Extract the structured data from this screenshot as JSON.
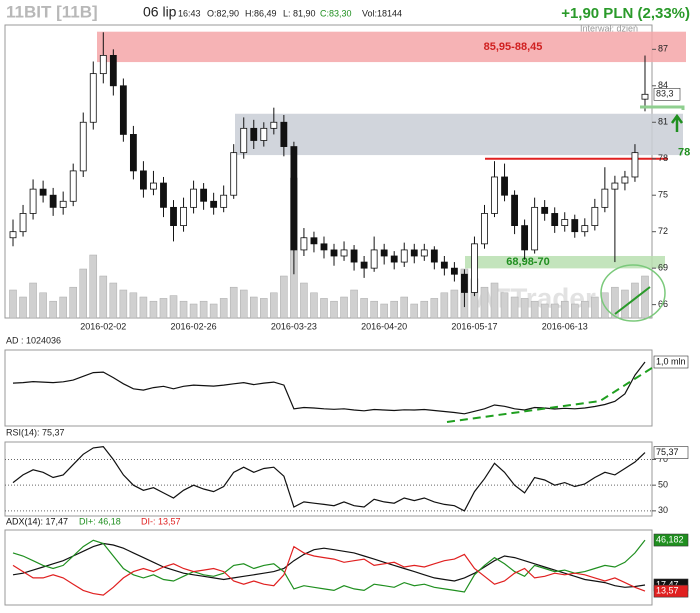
{
  "header": {
    "symbol": "11BIT [11B]",
    "date": "06 lip",
    "time": "16:43",
    "open": "O:82,90",
    "high": "H:86,49",
    "low": "L: 81,90",
    "close": "C:83,30",
    "volume": "Vol:18144",
    "change": "+1,90 PLN (2,33%)",
    "interval": "Interwał: dzień",
    "watermark": "ATTrader"
  },
  "chart_data": [
    {
      "type": "candlestick",
      "categories": [
        null,
        null,
        null,
        null,
        null,
        null,
        null,
        null,
        null,
        "2016-02-02",
        null,
        null,
        null,
        null,
        null,
        null,
        null,
        null,
        "2016-02-26",
        null,
        null,
        null,
        null,
        null,
        null,
        null,
        null,
        null,
        "2016-03-23",
        null,
        null,
        null,
        null,
        null,
        null,
        null,
        null,
        "2016-04-20",
        null,
        null,
        null,
        null,
        null,
        null,
        null,
        null,
        "2016-05-17",
        null,
        null,
        null,
        null,
        null,
        null,
        null,
        null,
        "2016-06-13",
        null,
        null,
        null,
        null,
        null,
        null,
        null,
        null
      ],
      "open": [
        71.5,
        72,
        73.5,
        75.5,
        75,
        74,
        74.5,
        77,
        81,
        85,
        86.5,
        84,
        80,
        77,
        75.5,
        76,
        74,
        72.5,
        74,
        75.5,
        74.5,
        74,
        75,
        78.5,
        80.5,
        79.5,
        80.5,
        81,
        79,
        70.5,
        71.5,
        71,
        70.5,
        70,
        70.5,
        69.5,
        69,
        70.5,
        70,
        69.5,
        70.5,
        70,
        70.5,
        69.5,
        69,
        68.5,
        67,
        71,
        73.5,
        76.5,
        75,
        72.5,
        70.5,
        74,
        73.5,
        72.5,
        73,
        72,
        72.5,
        74,
        75.5,
        76,
        76.5,
        82.9
      ],
      "high": [
        73,
        74.2,
        76.3,
        76.2,
        75.6,
        75.3,
        77.6,
        81.8,
        86,
        88.4,
        87,
        84.6,
        80.7,
        77.8,
        77,
        76.5,
        74.6,
        74.8,
        76.2,
        76,
        75.2,
        75.8,
        79.2,
        81.4,
        81.2,
        81,
        82.2,
        81.6,
        79.4,
        72.3,
        72,
        71.6,
        71,
        71.2,
        70.9,
        70,
        71.6,
        71,
        70.4,
        71.1,
        71,
        71,
        70.8,
        70,
        69.5,
        68.9,
        71.6,
        74.2,
        77.8,
        77.6,
        75.4,
        73,
        74.8,
        74.6,
        74,
        73.6,
        73.4,
        73.1,
        74.7,
        77.3,
        76.6,
        77,
        79.2,
        86.49
      ],
      "low": [
        70.8,
        71.6,
        73,
        74.4,
        73.3,
        73.4,
        74.1,
        76.5,
        80.4,
        84.2,
        83.2,
        79.4,
        76.3,
        74.8,
        75,
        73.2,
        71.2,
        72,
        73.5,
        73.8,
        73.4,
        73.6,
        74.7,
        78,
        78.8,
        79,
        80,
        78.2,
        68.5,
        70,
        70.3,
        69.8,
        69.2,
        69.6,
        68.8,
        68.2,
        68.7,
        69.3,
        68.9,
        69.1,
        69.4,
        69.6,
        68.9,
        68.4,
        67.9,
        65.8,
        66.7,
        70.6,
        73.2,
        74.5,
        71.8,
        69.7,
        70.2,
        72.9,
        71.9,
        72,
        71.5,
        71.6,
        72.1,
        73.6,
        69.5,
        75.4,
        76.1,
        81.9
      ],
      "close": [
        72,
        73.5,
        75.5,
        75,
        74,
        74.5,
        77,
        81,
        85,
        86.5,
        84,
        80,
        77,
        75.5,
        76,
        74,
        72.5,
        74,
        75.5,
        74.5,
        74,
        75,
        78.5,
        80.5,
        79.5,
        80.5,
        81,
        79,
        70.5,
        71.5,
        71,
        70.5,
        70,
        70.5,
        69.5,
        69,
        70.5,
        70,
        69.5,
        70.5,
        70,
        70.5,
        69.5,
        69,
        68.5,
        67,
        71,
        73.5,
        76.5,
        75,
        72.5,
        70.5,
        74,
        73.5,
        72.5,
        73,
        72,
        72.5,
        74,
        75.5,
        76,
        76.5,
        78.5,
        83.3
      ],
      "volume": [
        20,
        15,
        25,
        18,
        12,
        15,
        22,
        35,
        45,
        30,
        25,
        20,
        18,
        15,
        12,
        14,
        16,
        12,
        10,
        12,
        10,
        14,
        22,
        20,
        15,
        14,
        18,
        30,
        100,
        25,
        18,
        14,
        12,
        15,
        20,
        14,
        12,
        10,
        12,
        15,
        10,
        12,
        14,
        18,
        20,
        35,
        28,
        22,
        25,
        18,
        15,
        14,
        12,
        10,
        10,
        12,
        10,
        12,
        15,
        18,
        22,
        20,
        25,
        30
      ],
      "ylim": [
        64.9,
        89
      ],
      "yticks": [
        66,
        69,
        72,
        75,
        78,
        81,
        84,
        87
      ],
      "zones": [
        {
          "low": 85.95,
          "high": 88.45,
          "label": "85,95-88,45",
          "color": "#f4a6a8"
        },
        {
          "low": 78.3,
          "high": 81.7,
          "color": "#c9ced6"
        },
        {
          "low": 68.98,
          "high": 70,
          "label": "68,98-70",
          "color": "#b9dfb0"
        }
      ],
      "level": {
        "value": 78,
        "label": "78",
        "color": "#e02020"
      },
      "last_label": {
        "value": 83.3,
        "label": "83,3"
      }
    },
    {
      "type": "line",
      "title": "AD : 1024036",
      "ylim": [
        -1540000,
        1505000
      ],
      "series": [
        {
          "color": "#111",
          "values": [
            180000,
            200000,
            240000,
            220000,
            200000,
            230000,
            300000,
            450000,
            600000,
            620000,
            400000,
            150000,
            -50000,
            -100000,
            0,
            50000,
            -50000,
            50000,
            100000,
            80000,
            60000,
            100000,
            150000,
            200000,
            120000,
            180000,
            220000,
            100000,
            -850000,
            -800000,
            -820000,
            -850000,
            -870000,
            -850000,
            -900000,
            -930000,
            -880000,
            -900000,
            -920000,
            -890000,
            -900000,
            -880000,
            -920000,
            -960000,
            -1000000,
            -1050000,
            -950000,
            -850000,
            -700000,
            -750000,
            -850000,
            -900000,
            -800000,
            -820000,
            -860000,
            -830000,
            -850000,
            -820000,
            -760000,
            -680000,
            -550000,
            -250000,
            500000,
            1024036
          ]
        }
      ],
      "end_labels": [
        {
          "value": 1024036,
          "label": "1,0 mln",
          "color": "#fff"
        }
      ]
    },
    {
      "type": "line",
      "title": "RSI(14): 75,37",
      "ylim": [
        26,
        83.6
      ],
      "yticks": [
        30,
        50,
        70
      ],
      "grid": true,
      "series": [
        {
          "color": "#111",
          "values": [
            52,
            58,
            62,
            60,
            56,
            58,
            66,
            74,
            79,
            80,
            70,
            58,
            50,
            46,
            48,
            44,
            40,
            46,
            50,
            47,
            45,
            49,
            60,
            64,
            60,
            63,
            64,
            57,
            33,
            37,
            36,
            35,
            34,
            37,
            34,
            33,
            39,
            37,
            36,
            40,
            38,
            40,
            37,
            35,
            34,
            30,
            45,
            55,
            67,
            60,
            50,
            44,
            56,
            54,
            50,
            52,
            49,
            51,
            56,
            60,
            58,
            63,
            68,
            75.37
          ]
        }
      ],
      "end_labels": [
        {
          "value": 75.37,
          "label": "75,37",
          "color": "#fff"
        }
      ]
    },
    {
      "type": "line",
      "ylim": [
        4.7,
        52.6
      ],
      "series": [
        {
          "name": "ADX(14): 17,47",
          "color": "#111",
          "values": [
            24,
            25,
            27,
            29,
            31,
            33,
            36,
            39,
            42,
            44,
            43,
            41,
            38,
            35,
            32,
            29,
            27,
            25,
            24,
            23,
            22,
            21,
            22,
            23,
            24,
            25,
            26,
            28,
            33,
            37,
            40,
            41,
            40,
            39,
            38,
            36,
            34,
            32,
            30,
            28,
            26,
            24,
            22,
            21,
            20,
            22,
            25,
            29,
            33,
            36,
            35,
            33,
            31,
            29,
            27,
            25,
            23,
            21,
            20,
            19,
            17,
            16,
            16.5,
            17.47
          ]
        },
        {
          "name": "DI+: 46,18",
          "color": "#1f8f1f",
          "values": [
            38,
            36,
            33,
            30,
            28,
            30,
            36,
            42,
            46,
            44,
            36,
            28,
            24,
            22,
            24,
            21,
            20,
            23,
            26,
            24,
            23,
            25,
            30,
            31,
            28,
            30,
            31,
            26,
            15,
            17,
            16,
            15,
            14,
            17,
            15,
            14,
            18,
            17,
            16,
            19,
            17,
            18,
            16,
            15,
            14,
            13,
            24,
            30,
            35,
            31,
            26,
            23,
            30,
            28,
            26,
            27,
            25,
            26,
            28,
            30,
            29,
            32,
            38,
            46.18
          ]
        },
        {
          "name": "DI-: 13,57",
          "color": "#e02020",
          "values": [
            30,
            26,
            22,
            22,
            24,
            22,
            18,
            14,
            12,
            11,
            16,
            22,
            26,
            28,
            26,
            29,
            31,
            28,
            26,
            27,
            28,
            26,
            20,
            18,
            20,
            18,
            17,
            24,
            42,
            38,
            36,
            35,
            34,
            32,
            33,
            34,
            30,
            31,
            32,
            29,
            30,
            29,
            31,
            33,
            34,
            37,
            28,
            23,
            18,
            20,
            25,
            28,
            22,
            23,
            25,
            24,
            25,
            24,
            22,
            20,
            22,
            19,
            16,
            13.57
          ]
        }
      ],
      "end_labels": [
        {
          "value": 46.182,
          "label": "46,182",
          "color": "#1f8f1f"
        },
        {
          "value": 17.47,
          "label": "17,47",
          "color": "#111"
        },
        {
          "value": 13.57,
          "label": "13,57",
          "color": "#e02020"
        }
      ]
    }
  ]
}
